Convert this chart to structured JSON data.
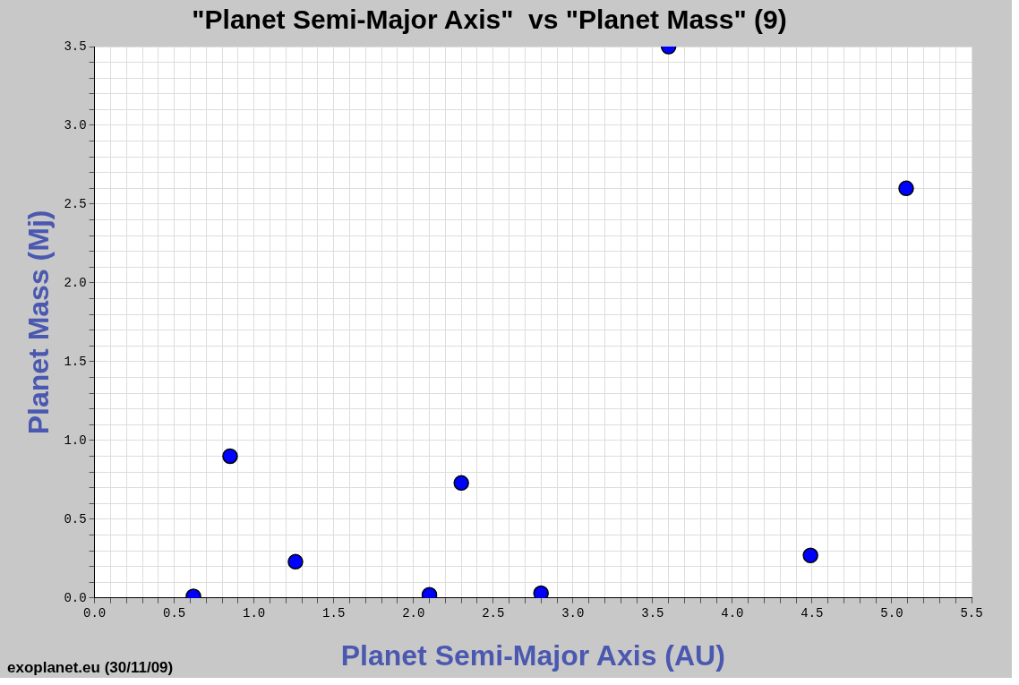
{
  "chart_data": {
    "type": "scatter",
    "title": "\"Planet Semi-Major Axis\"  vs \"Planet Mass\" (9)",
    "xlabel": "Planet Semi-Major Axis (AU)",
    "ylabel": "Planet Mass (Mj)",
    "annotations": [
      "exoplanet.eu (30/11/09)"
    ],
    "series": [
      {
        "color": "#0000ff",
        "x": [
          0.62,
          0.85,
          1.26,
          2.1,
          2.3,
          2.8,
          3.6,
          4.49,
          5.09
        ],
        "values": [
          0.01,
          0.9,
          0.23,
          0.02,
          0.73,
          0.03,
          3.5,
          0.27,
          2.6
        ]
      }
    ],
    "xlim": [
      0,
      5.5
    ],
    "ylim": [
      0,
      3.5
    ],
    "xticks": [
      {
        "value": 0,
        "label": "0.0"
      },
      {
        "value": 0.1,
        "label": null
      },
      {
        "value": 0.2,
        "label": null
      },
      {
        "value": 0.3,
        "label": null
      },
      {
        "value": 0.4,
        "label": null
      },
      {
        "value": 0.5,
        "label": "0.5"
      },
      {
        "value": 0.6,
        "label": null
      },
      {
        "value": 0.7,
        "label": null
      },
      {
        "value": 0.8,
        "label": null
      },
      {
        "value": 0.9,
        "label": null
      },
      {
        "value": 1,
        "label": "1.0"
      },
      {
        "value": 1.1,
        "label": null
      },
      {
        "value": 1.2,
        "label": null
      },
      {
        "value": 1.3,
        "label": null
      },
      {
        "value": 1.4,
        "label": null
      },
      {
        "value": 1.5,
        "label": "1.5"
      },
      {
        "value": 1.6,
        "label": null
      },
      {
        "value": 1.7,
        "label": null
      },
      {
        "value": 1.8,
        "label": null
      },
      {
        "value": 1.9,
        "label": null
      },
      {
        "value": 2,
        "label": "2.0"
      },
      {
        "value": 2.1,
        "label": null
      },
      {
        "value": 2.2,
        "label": null
      },
      {
        "value": 2.3,
        "label": null
      },
      {
        "value": 2.4,
        "label": null
      },
      {
        "value": 2.5,
        "label": "2.5"
      },
      {
        "value": 2.6,
        "label": null
      },
      {
        "value": 2.7,
        "label": null
      },
      {
        "value": 2.8,
        "label": null
      },
      {
        "value": 2.9,
        "label": null
      },
      {
        "value": 3,
        "label": "3.0"
      },
      {
        "value": 3.1,
        "label": null
      },
      {
        "value": 3.2,
        "label": null
      },
      {
        "value": 3.3,
        "label": null
      },
      {
        "value": 3.4,
        "label": null
      },
      {
        "value": 3.5,
        "label": "3.5"
      },
      {
        "value": 3.6,
        "label": null
      },
      {
        "value": 3.7,
        "label": null
      },
      {
        "value": 3.8,
        "label": null
      },
      {
        "value": 3.9,
        "label": null
      },
      {
        "value": 4,
        "label": "4.0"
      },
      {
        "value": 4.1,
        "label": null
      },
      {
        "value": 4.2,
        "label": null
      },
      {
        "value": 4.3,
        "label": null
      },
      {
        "value": 4.4,
        "label": null
      },
      {
        "value": 4.5,
        "label": "4.5"
      },
      {
        "value": 4.6,
        "label": null
      },
      {
        "value": 4.7,
        "label": null
      },
      {
        "value": 4.8,
        "label": null
      },
      {
        "value": 4.9,
        "label": null
      },
      {
        "value": 5,
        "label": "5.0"
      },
      {
        "value": 5.1,
        "label": null
      },
      {
        "value": 5.2,
        "label": null
      },
      {
        "value": 5.3,
        "label": null
      },
      {
        "value": 5.4,
        "label": null
      },
      {
        "value": 5.5,
        "label": "5.5"
      }
    ],
    "yticks": [
      {
        "value": 0,
        "label": "0.0"
      },
      {
        "value": 0.1,
        "label": null
      },
      {
        "value": 0.2,
        "label": null
      },
      {
        "value": 0.3,
        "label": null
      },
      {
        "value": 0.4,
        "label": null
      },
      {
        "value": 0.5,
        "label": "0.5"
      },
      {
        "value": 0.6,
        "label": null
      },
      {
        "value": 0.7,
        "label": null
      },
      {
        "value": 0.8,
        "label": null
      },
      {
        "value": 0.9,
        "label": null
      },
      {
        "value": 1,
        "label": "1.0"
      },
      {
        "value": 1.1,
        "label": null
      },
      {
        "value": 1.2,
        "label": null
      },
      {
        "value": 1.3,
        "label": null
      },
      {
        "value": 1.4,
        "label": null
      },
      {
        "value": 1.5,
        "label": "1.5"
      },
      {
        "value": 1.6,
        "label": null
      },
      {
        "value": 1.7,
        "label": null
      },
      {
        "value": 1.8,
        "label": null
      },
      {
        "value": 1.9,
        "label": null
      },
      {
        "value": 2,
        "label": "2.0"
      },
      {
        "value": 2.1,
        "label": null
      },
      {
        "value": 2.2,
        "label": null
      },
      {
        "value": 2.3,
        "label": null
      },
      {
        "value": 2.4,
        "label": null
      },
      {
        "value": 2.5,
        "label": "2.5"
      },
      {
        "value": 2.6,
        "label": null
      },
      {
        "value": 2.7,
        "label": null
      },
      {
        "value": 2.8,
        "label": null
      },
      {
        "value": 2.9,
        "label": null
      },
      {
        "value": 3,
        "label": "3.0"
      },
      {
        "value": 3.1,
        "label": null
      },
      {
        "value": 3.2,
        "label": null
      },
      {
        "value": 3.3,
        "label": null
      },
      {
        "value": 3.4,
        "label": null
      },
      {
        "value": 3.5,
        "label": "3.5"
      }
    ],
    "grid": true,
    "legend": false,
    "marker": "circle"
  }
}
